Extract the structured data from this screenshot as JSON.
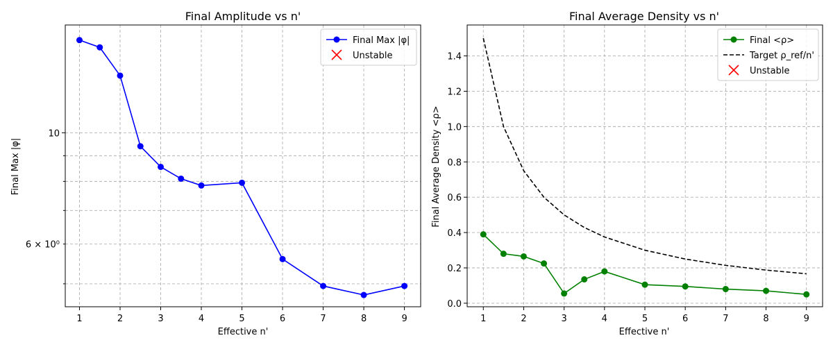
{
  "chart_data": [
    {
      "type": "line",
      "title": "Final Amplitude vs n'",
      "xlabel": "Effective n'",
      "ylabel": "Final Max |φ|",
      "yscale": "log",
      "xlim": [
        0.65,
        9.4
      ],
      "ylim": [
        4.5,
        16.4
      ],
      "xticks": [
        1,
        2,
        3,
        4,
        5,
        6,
        7,
        8,
        9
      ],
      "yticks_major": [
        {
          "value": 10,
          "label": "10"
        }
      ],
      "yticks_minor": [
        {
          "value": 6,
          "label": "6 × 10⁰"
        },
        {
          "value": 7,
          "label": ""
        },
        {
          "value": 8,
          "label": ""
        },
        {
          "value": 9,
          "label": ""
        },
        {
          "value": 5,
          "label": ""
        }
      ],
      "grid": true,
      "legend_position": "top-right",
      "series": [
        {
          "name": "Final Max |φ|",
          "color": "#0000ff",
          "marker": "circle",
          "x": [
            1,
            1.5,
            2,
            2.5,
            3,
            3.5,
            4,
            5,
            6,
            7,
            8,
            9
          ],
          "y": [
            15.3,
            14.8,
            13.0,
            9.4,
            8.55,
            8.1,
            7.85,
            7.95,
            5.6,
            4.95,
            4.75,
            4.95
          ]
        }
      ],
      "unstable_legend": {
        "name": "Unstable",
        "color": "#ff0000",
        "marker": "x"
      }
    },
    {
      "type": "line",
      "title": "Final Average Density vs n'",
      "xlabel": "Effective n'",
      "ylabel": "Final Average Density <ρ>",
      "yscale": "linear",
      "xlim": [
        0.6,
        9.4
      ],
      "ylim": [
        -0.02,
        1.575
      ],
      "xticks": [
        1,
        2,
        3,
        4,
        5,
        6,
        7,
        8,
        9
      ],
      "yticks": [
        0.0,
        0.2,
        0.4,
        0.6,
        0.8,
        1.0,
        1.2,
        1.4
      ],
      "ytick_labels": [
        "0.0",
        "0.2",
        "0.4",
        "0.6",
        "0.8",
        "1.0",
        "1.2",
        "1.4"
      ],
      "grid": true,
      "legend_position": "top-right",
      "series": [
        {
          "name": "Final <ρ>",
          "color": "#008000",
          "marker": "circle",
          "x": [
            1,
            1.5,
            2,
            2.5,
            3,
            3.5,
            4,
            5,
            6,
            7,
            8,
            9
          ],
          "y": [
            0.39,
            0.28,
            0.265,
            0.225,
            0.055,
            0.135,
            0.18,
            0.105,
            0.095,
            0.08,
            0.07,
            0.05
          ]
        },
        {
          "name": "Target ρ_ref/n'",
          "color": "#000000",
          "dashed": true,
          "x": [
            1,
            1.5,
            2,
            2.5,
            3,
            3.5,
            4,
            5,
            6,
            7,
            8,
            9
          ],
          "y": [
            1.5,
            1.0,
            0.75,
            0.6,
            0.5,
            0.4286,
            0.375,
            0.3,
            0.25,
            0.2143,
            0.1875,
            0.1667
          ]
        }
      ],
      "unstable_legend": {
        "name": "Unstable",
        "color": "#ff0000",
        "marker": "x"
      }
    }
  ]
}
